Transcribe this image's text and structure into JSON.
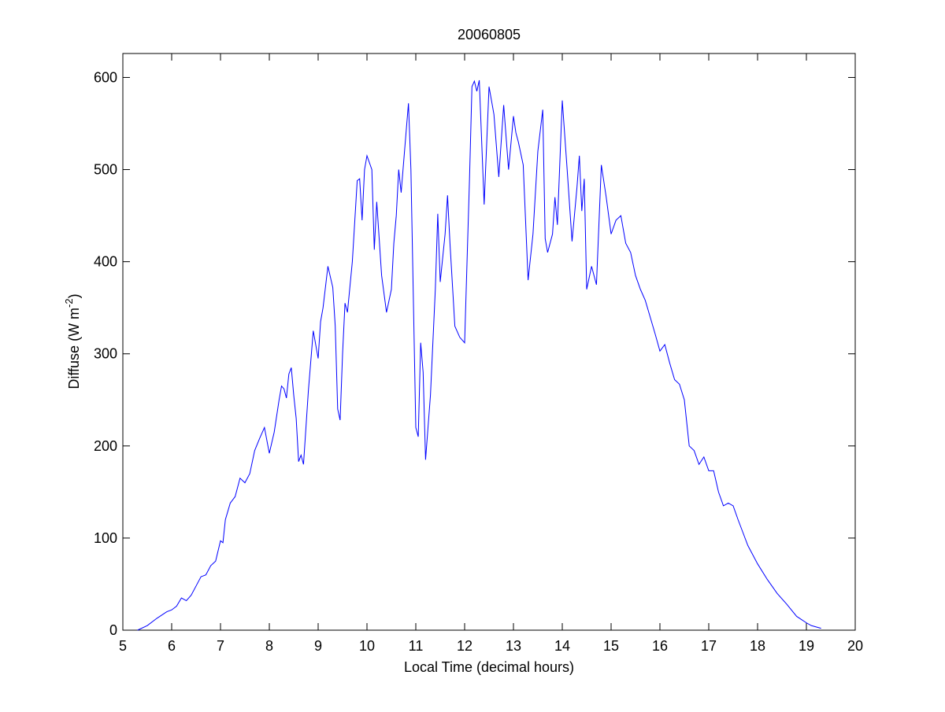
{
  "chart_data": {
    "type": "line",
    "title": "20060805",
    "xlabel": "Local Time (decimal hours)",
    "ylabel": [
      "Diffuse (W m",
      "-2",
      ")"
    ],
    "xlim": [
      5,
      20
    ],
    "ylim": [
      0,
      626
    ],
    "xticks": [
      5,
      6,
      7,
      8,
      9,
      10,
      11,
      12,
      13,
      14,
      15,
      16,
      17,
      18,
      19,
      20
    ],
    "yticks": [
      0,
      100,
      200,
      300,
      400,
      500,
      600
    ],
    "grid": false,
    "box": true,
    "color": "#0000ff",
    "x": [
      5.3,
      5.5,
      5.7,
      5.9,
      6.0,
      6.1,
      6.2,
      6.3,
      6.4,
      6.5,
      6.6,
      6.7,
      6.8,
      6.9,
      7.0,
      7.05,
      7.1,
      7.2,
      7.3,
      7.4,
      7.5,
      7.6,
      7.7,
      7.8,
      7.9,
      8.0,
      8.1,
      8.2,
      8.25,
      8.3,
      8.35,
      8.4,
      8.45,
      8.5,
      8.55,
      8.6,
      8.65,
      8.7,
      8.8,
      8.9,
      9.0,
      9.05,
      9.1,
      9.2,
      9.3,
      9.35,
      9.4,
      9.45,
      9.5,
      9.55,
      9.6,
      9.7,
      9.8,
      9.85,
      9.9,
      9.95,
      10.0,
      10.1,
      10.15,
      10.2,
      10.3,
      10.4,
      10.5,
      10.55,
      10.6,
      10.65,
      10.7,
      10.8,
      10.85,
      10.9,
      11.0,
      11.05,
      11.1,
      11.15,
      11.2,
      11.3,
      11.4,
      11.45,
      11.5,
      11.6,
      11.65,
      11.7,
      11.8,
      11.9,
      12.0,
      12.1,
      12.15,
      12.2,
      12.25,
      12.3,
      12.4,
      12.5,
      12.6,
      12.7,
      12.8,
      12.9,
      13.0,
      13.05,
      13.1,
      13.2,
      13.3,
      13.4,
      13.5,
      13.6,
      13.65,
      13.7,
      13.8,
      13.85,
      13.9,
      14.0,
      14.1,
      14.2,
      14.3,
      14.35,
      14.4,
      14.45,
      14.5,
      14.6,
      14.7,
      14.8,
      14.9,
      15.0,
      15.1,
      15.2,
      15.3,
      15.4,
      15.5,
      15.6,
      15.7,
      15.8,
      15.9,
      16.0,
      16.1,
      16.2,
      16.3,
      16.4,
      16.5,
      16.6,
      16.7,
      16.8,
      16.9,
      17.0,
      17.1,
      17.2,
      17.3,
      17.4,
      17.5,
      17.6,
      17.7,
      17.8,
      17.9,
      18.0,
      18.2,
      18.4,
      18.6,
      18.8,
      19.0,
      19.1,
      19.3
    ],
    "values": [
      0,
      5,
      13,
      20,
      22,
      26,
      35,
      32,
      38,
      48,
      58,
      60,
      70,
      75,
      97,
      95,
      120,
      138,
      145,
      165,
      160,
      170,
      195,
      208,
      220,
      192,
      215,
      250,
      265,
      262,
      252,
      278,
      285,
      255,
      230,
      183,
      190,
      180,
      260,
      325,
      295,
      335,
      350,
      395,
      372,
      330,
      240,
      228,
      300,
      355,
      345,
      400,
      488,
      490,
      445,
      500,
      515,
      500,
      413,
      465,
      385,
      345,
      370,
      420,
      450,
      500,
      475,
      540,
      572,
      500,
      220,
      210,
      312,
      280,
      185,
      255,
      370,
      452,
      378,
      430,
      472,
      420,
      330,
      318,
      312,
      490,
      590,
      596,
      585,
      597,
      462,
      590,
      560,
      492,
      570,
      500,
      558,
      540,
      530,
      505,
      380,
      430,
      520,
      565,
      425,
      410,
      430,
      470,
      440,
      575,
      500,
      422,
      480,
      515,
      455,
      490,
      370,
      395,
      375,
      505,
      470,
      430,
      445,
      450,
      420,
      410,
      385,
      370,
      358,
      340,
      322,
      303,
      310,
      290,
      272,
      267,
      250,
      200,
      195,
      180,
      188,
      173,
      173,
      150,
      135,
      138,
      135,
      120,
      106,
      92,
      82,
      72,
      55,
      40,
      28,
      15,
      8,
      5,
      2
    ]
  }
}
